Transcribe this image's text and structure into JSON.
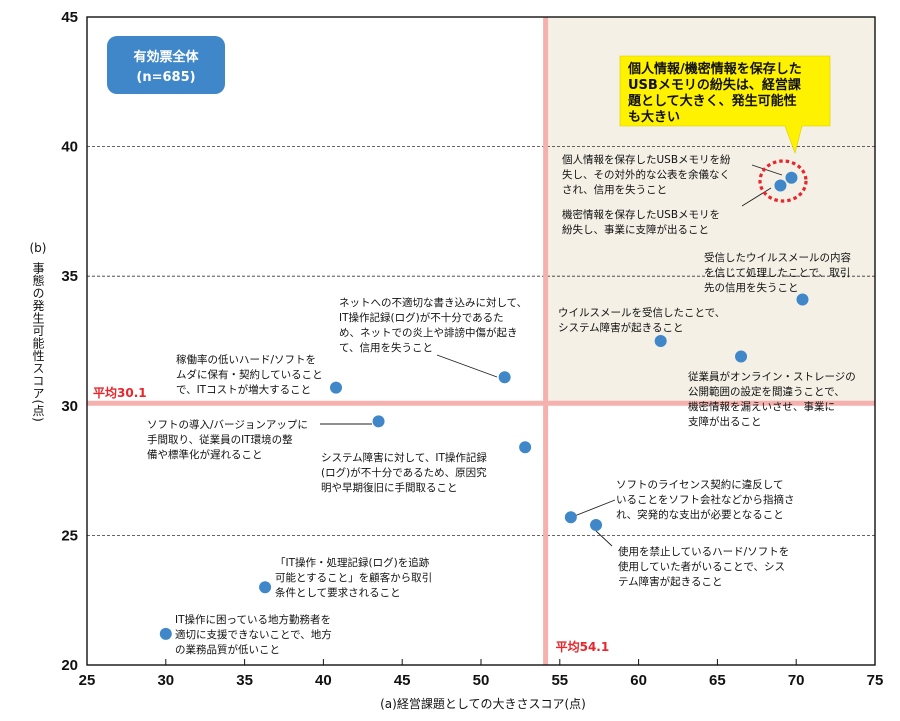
{
  "chart_data": {
    "type": "scatter",
    "xlabel": "(a)経営課題としての大きさスコア(点)",
    "ylabel_prefix": "(b)",
    "ylabel": "事態の発生可能性スコア(点)",
    "xlim": [
      25,
      75
    ],
    "ylim": [
      20,
      45
    ],
    "x_ticks": [
      "25",
      "30",
      "35",
      "40",
      "45",
      "50",
      "55",
      "60",
      "65",
      "70",
      "75"
    ],
    "y_ticks": [
      "20",
      "25",
      "30",
      "35",
      "40",
      "45"
    ],
    "grid": "dashed horizontal at 25, 35, 40",
    "averages": {
      "x": 54.1,
      "y": 30.1,
      "x_label": "平均54.1",
      "y_label": "平均30.1"
    },
    "badge": {
      "line1": "有効票全体",
      "line2": "(n=685)"
    },
    "callout": {
      "lines": [
        "個人情報/機密情報を保存した",
        "USBメモリの紛失は、経営課",
        "題として大きく、発生可能性",
        "も大きい"
      ]
    },
    "colors": {
      "point": "#3f87c8",
      "average_line": "#f4b1ad",
      "highlight_bg": "#f4f0e6",
      "callout_bg": "#fff200",
      "badge_bg": "#3f87c8",
      "average_text": "#e8262b"
    },
    "points": [
      {
        "x": 69.7,
        "y": 38.8,
        "label": [
          "個人情報を保存したUSBメモリを紛",
          "失し、その対外的な公表を余儀なく",
          "され、信用を失うこと"
        ]
      },
      {
        "x": 69.0,
        "y": 38.5,
        "label": [
          "機密情報を保存したUSBメモリを",
          "紛失し、事業に支障が出ること"
        ]
      },
      {
        "x": 70.4,
        "y": 34.1,
        "label": [
          "受信したウイルスメールの内容",
          "を信じて処理したことで、取引",
          "先の信用を失うこと"
        ]
      },
      {
        "x": 61.4,
        "y": 32.5,
        "label": [
          "ウイルスメールを受信したことで、",
          "システム障害が起きること"
        ]
      },
      {
        "x": 66.5,
        "y": 31.9,
        "label": [
          "従業員がオンライン・ストレージの",
          "公開範囲の設定を間違うことで、",
          "機密情報を漏えいさせ、事業に",
          "支障が出ること"
        ]
      },
      {
        "x": 51.5,
        "y": 31.1,
        "label": [
          "ネットへの不適切な書き込みに対して、",
          "IT操作記録(ログ)が不十分であるた",
          "め、ネットでの炎上や誹謗中傷が起き",
          "て、信用を失うこと"
        ]
      },
      {
        "x": 40.8,
        "y": 30.7,
        "label": [
          "稼働率の低いハード/ソフトを",
          "ムダに保有・契約していること",
          "で、ITコストが増大すること"
        ]
      },
      {
        "x": 43.5,
        "y": 29.4,
        "label": [
          "ソフトの導入/バージョンアップに",
          "手間取り、従業員のIT環境の整",
          "備や標準化が遅れること"
        ]
      },
      {
        "x": 52.8,
        "y": 28.4,
        "label": [
          "システム障害に対して、IT操作記録",
          "(ログ)が不十分であるため、原因究",
          "明や早期復旧に手間取ること"
        ]
      },
      {
        "x": 55.7,
        "y": 25.7,
        "label": [
          "ソフトのライセンス契約に違反して",
          "いることをソフト会社などから指摘さ",
          "れ、突発的な支出が必要となること"
        ]
      },
      {
        "x": 57.3,
        "y": 25.4,
        "label": [
          "使用を禁止しているハード/ソフトを",
          "使用していた者がいることで、シス",
          "テム障害が起きること"
        ]
      },
      {
        "x": 36.3,
        "y": 23.0,
        "label": [
          "「IT操作・処理記録(ログ)を追跡",
          "可能とすること」を顧客から取引",
          "条件として要求されること"
        ]
      },
      {
        "x": 30.0,
        "y": 21.2,
        "label": [
          "IT操作に困っている地方勤務者を",
          "適切に支援できないことで、地方",
          "の業務品質が低いこと"
        ]
      }
    ]
  }
}
